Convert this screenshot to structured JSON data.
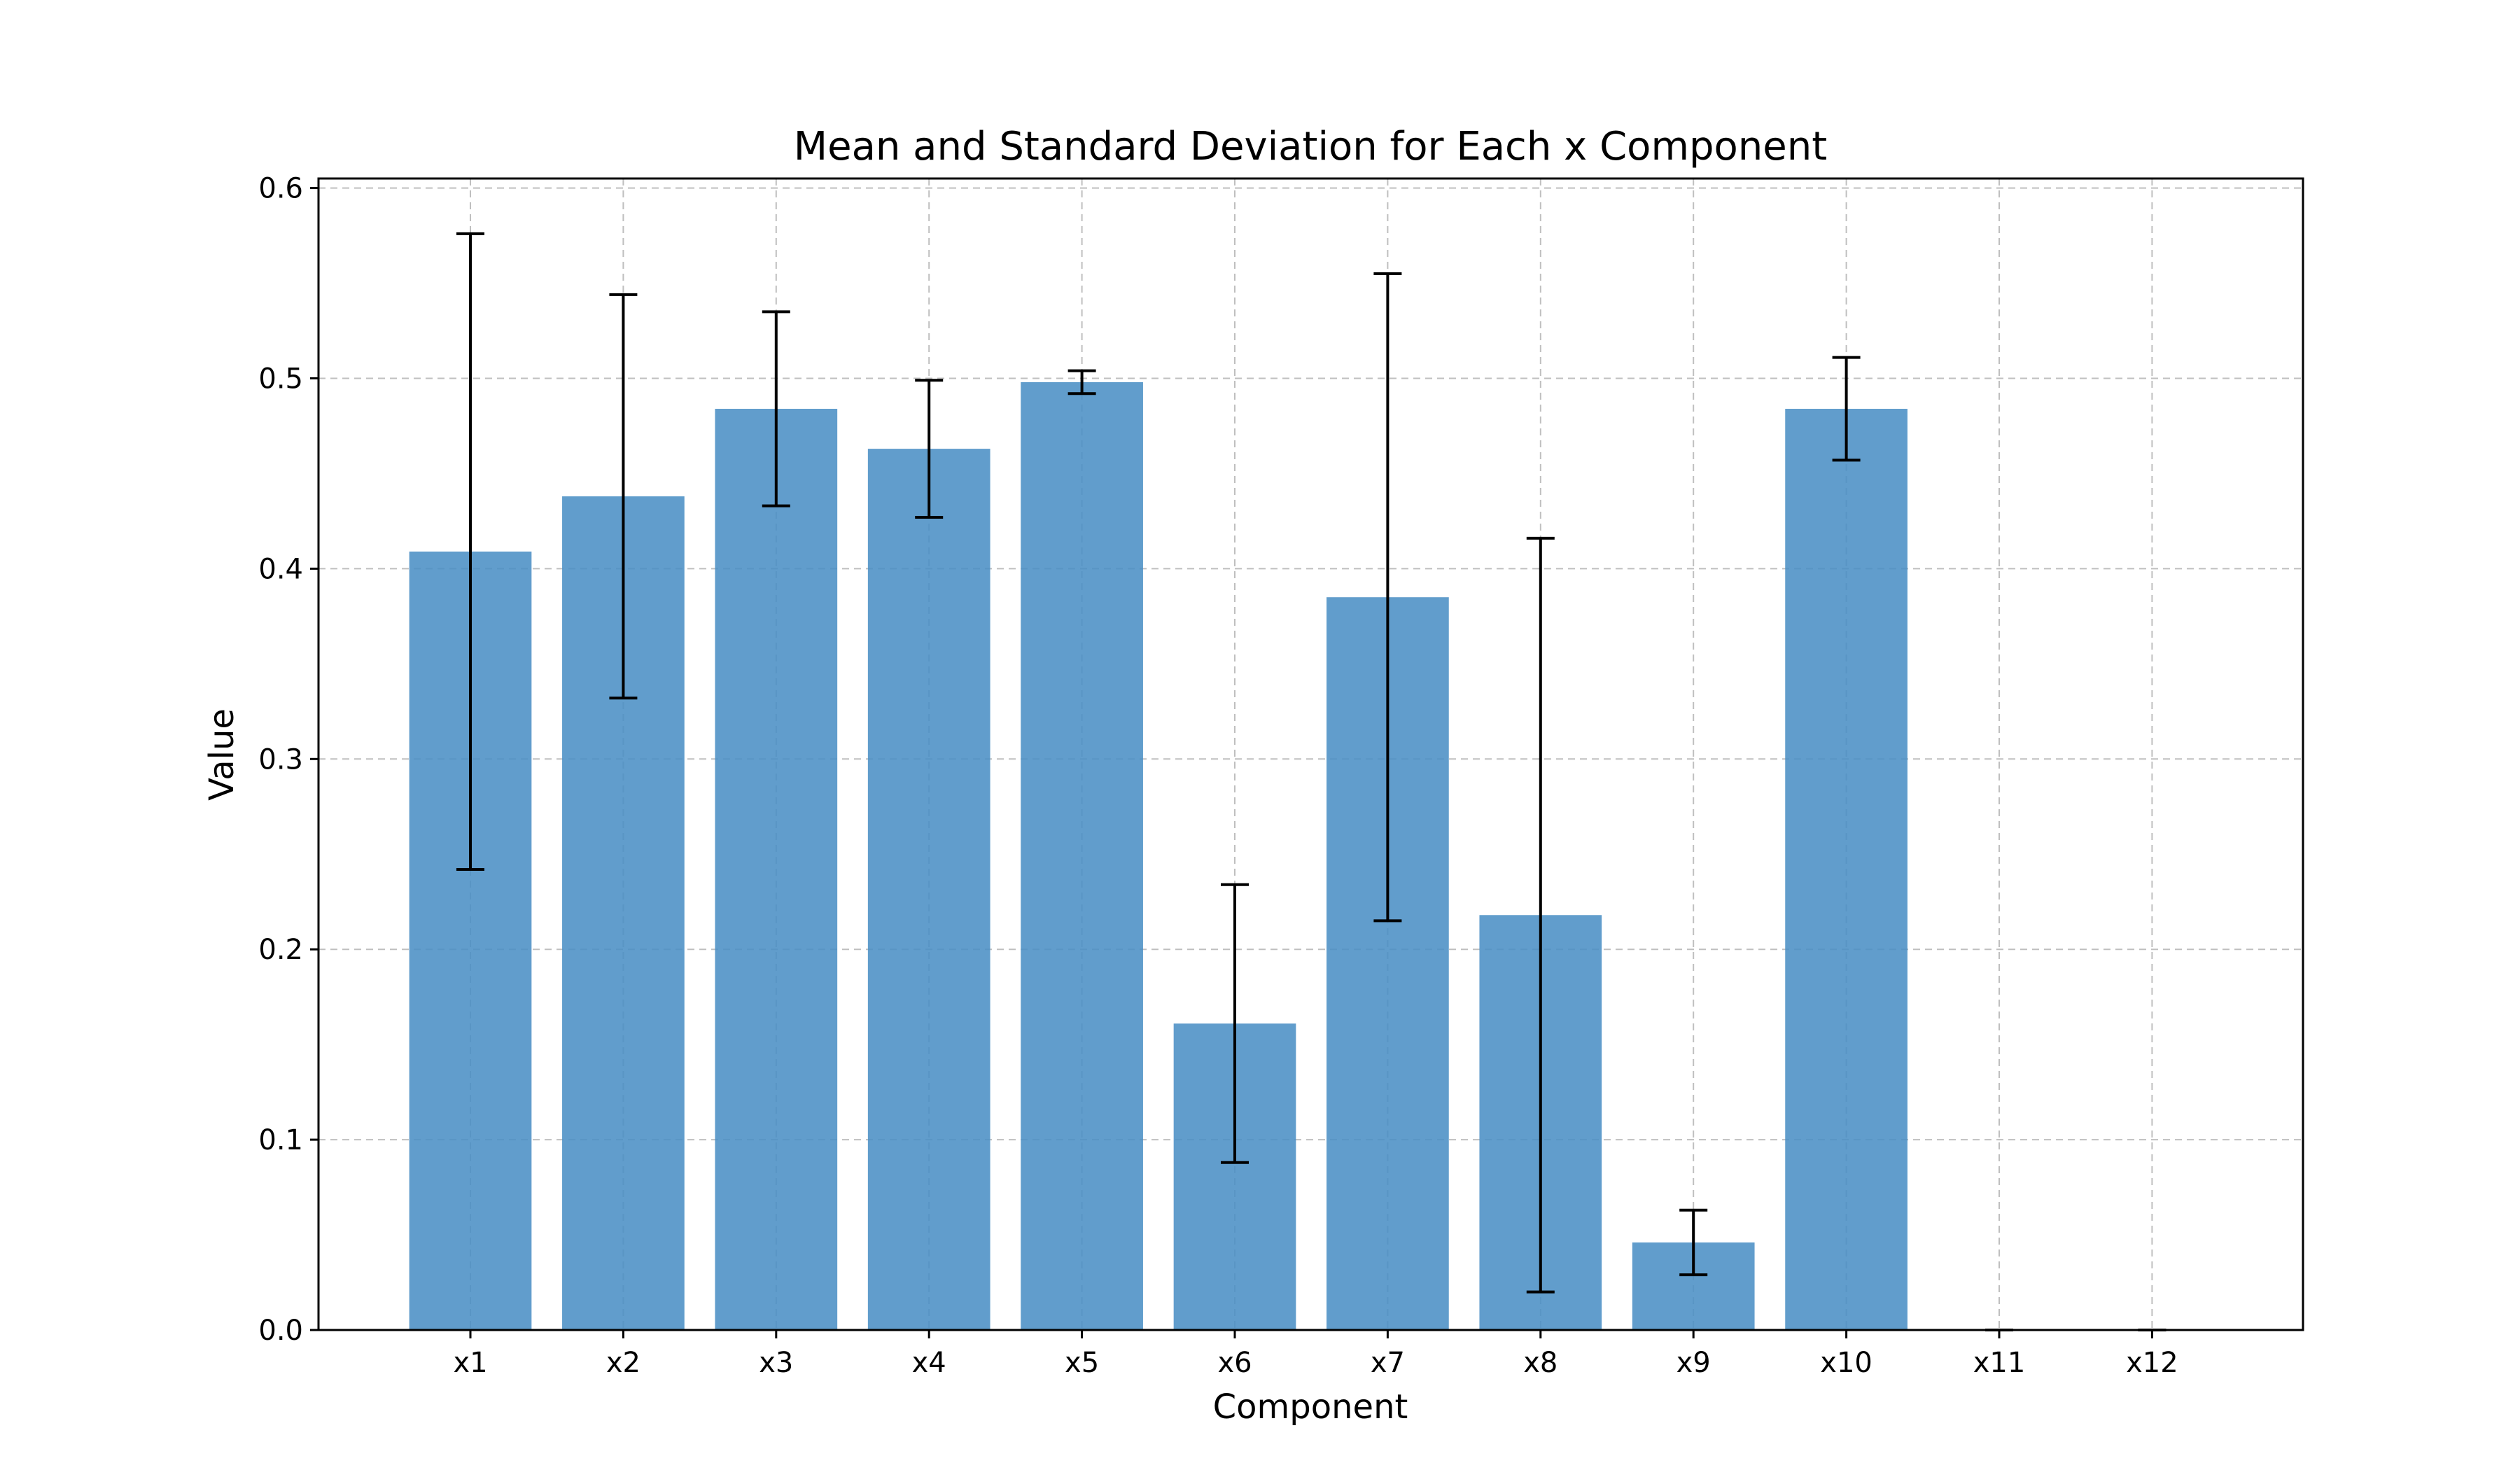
{
  "chart_data": {
    "type": "bar",
    "title": "Mean and Standard Deviation for Each x Component",
    "xlabel": "Component",
    "ylabel": "Value",
    "categories": [
      "x1",
      "x2",
      "x3",
      "x4",
      "x5",
      "x6",
      "x7",
      "x8",
      "x9",
      "x10",
      "x11",
      "x12"
    ],
    "values": [
      0.409,
      0.438,
      0.484,
      0.463,
      0.498,
      0.161,
      0.385,
      0.218,
      0.046,
      0.484,
      0.0,
      0.0
    ],
    "errors": [
      0.167,
      0.106,
      0.051,
      0.036,
      0.006,
      0.073,
      0.17,
      0.198,
      0.017,
      0.027,
      0.0,
      0.0
    ],
    "ylim": [
      0,
      0.605
    ],
    "yticks": [
      0.0,
      0.1,
      0.2,
      0.3,
      0.4,
      0.5,
      0.6
    ],
    "ytick_labels": [
      "0.0",
      "0.1",
      "0.2",
      "0.3",
      "0.4",
      "0.5",
      "0.6"
    ],
    "grid": true,
    "bar_color": "#4a8ec4",
    "bar_opacity": 0.87,
    "error_color": "#000000",
    "grid_color": "#b0b0b0"
  }
}
